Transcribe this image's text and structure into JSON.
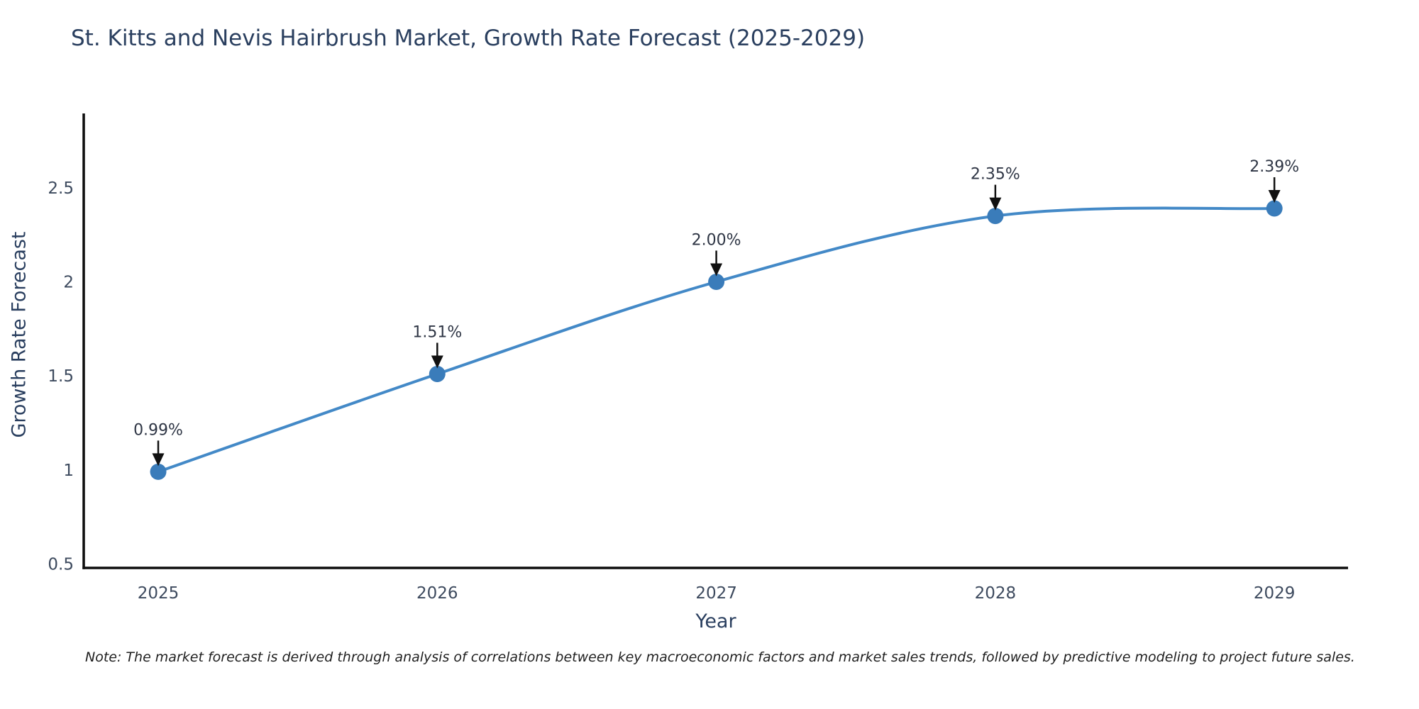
{
  "chart_data": {
    "type": "line",
    "title": "St. Kitts and Nevis Hairbrush Market, Growth Rate Forecast (2025-2029)",
    "xlabel": "Year",
    "ylabel": "Growth Rate Forecast",
    "x": [
      2025,
      2026,
      2027,
      2028,
      2029
    ],
    "values": [
      0.99,
      1.51,
      2.0,
      2.35,
      2.39
    ],
    "point_labels": [
      "0.99%",
      "1.51%",
      "2.00%",
      "2.35%",
      "2.39%"
    ],
    "x_tick_labels": [
      "2025",
      "2026",
      "2027",
      "2028",
      "2029"
    ],
    "x_tick_values": [
      2025,
      2026,
      2027,
      2028,
      2029
    ],
    "y_tick_labels": [
      "0.5",
      "1",
      "1.5",
      "2",
      "2.5"
    ],
    "y_tick_values": [
      0.5,
      1.0,
      1.5,
      2.0,
      2.5
    ],
    "xlim": [
      2024.733,
      2029.264
    ],
    "ylim": [
      0.479,
      2.895
    ],
    "grid": false,
    "legend": "none",
    "line_shape": "spline",
    "colors": {
      "line": "#4389c7",
      "marker": "#3a7cba",
      "axis": "#0d0d0d",
      "arrow": "#111111",
      "title_text": "#2a3f5f",
      "tick_text": "#3d4a5e",
      "annotation_text": "#2f3645"
    }
  },
  "note": {
    "text": "Note: The market forecast is derived through analysis of correlations between key macroeconomic factors and market sales trends, followed by predictive modeling to project future sales."
  }
}
